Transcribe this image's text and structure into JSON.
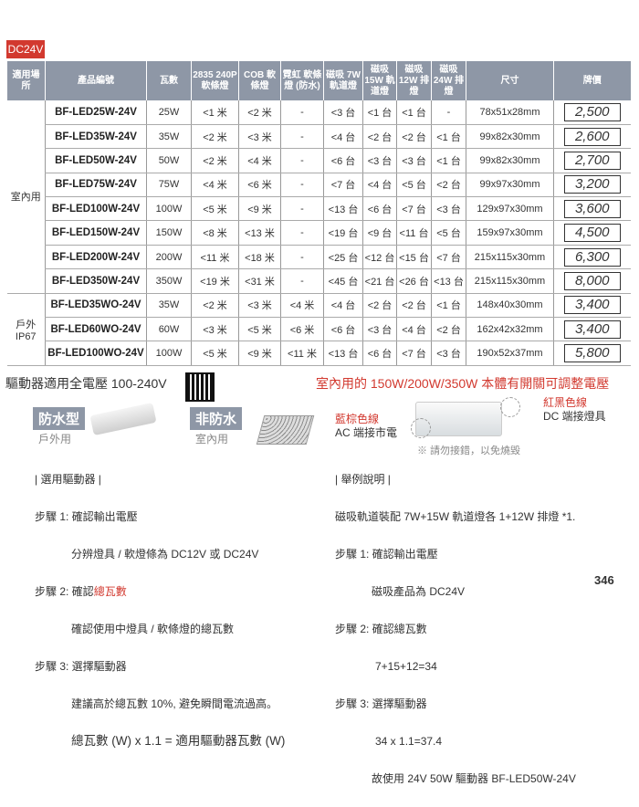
{
  "tag": "DC24V",
  "headers": [
    "適用場所",
    "產品編號",
    "瓦數",
    "2835 240P 軟條燈",
    "COB 軟條燈",
    "霓虹 軟條燈 (防水)",
    "磁吸 7W 軌道燈",
    "磁吸 15W 軌道燈",
    "磁吸 12W 排燈",
    "磁吸 24W 排燈",
    "尺寸",
    "牌價"
  ],
  "groups": [
    {
      "label": "室內用",
      "span": 8
    },
    {
      "label": "戶外 IP67",
      "span": 3
    }
  ],
  "rows": [
    [
      "BF-LED25W-24V",
      "25W",
      "<1 米",
      "<2 米",
      "-",
      "<3 台",
      "<1 台",
      "<1 台",
      "-",
      "78x51x28mm",
      "2,500"
    ],
    [
      "BF-LED35W-24V",
      "35W",
      "<2 米",
      "<3 米",
      "-",
      "<4 台",
      "<2 台",
      "<2 台",
      "<1 台",
      "99x82x30mm",
      "2,600"
    ],
    [
      "BF-LED50W-24V",
      "50W",
      "<2 米",
      "<4 米",
      "-",
      "<6 台",
      "<3 台",
      "<3 台",
      "<1 台",
      "99x82x30mm",
      "2,700"
    ],
    [
      "BF-LED75W-24V",
      "75W",
      "<4 米",
      "<6 米",
      "-",
      "<7 台",
      "<4 台",
      "<5 台",
      "<2 台",
      "99x97x30mm",
      "3,200"
    ],
    [
      "BF-LED100W-24V",
      "100W",
      "<5 米",
      "<9 米",
      "-",
      "<13 台",
      "<6 台",
      "<7 台",
      "<3 台",
      "129x97x30mm",
      "3,600"
    ],
    [
      "BF-LED150W-24V",
      "150W",
      "<8 米",
      "<13 米",
      "-",
      "<19 台",
      "<9 台",
      "<11 台",
      "<5 台",
      "159x97x30mm",
      "4,500"
    ],
    [
      "BF-LED200W-24V",
      "200W",
      "<11 米",
      "<18 米",
      "-",
      "<25 台",
      "<12 台",
      "<15 台",
      "<7 台",
      "215x115x30mm",
      "6,300"
    ],
    [
      "BF-LED350W-24V",
      "350W",
      "<19 米",
      "<31 米",
      "-",
      "<45 台",
      "<21 台",
      "<26 台",
      "<13 台",
      "215x115x30mm",
      "8,000"
    ],
    [
      "BF-LED35WO-24V",
      "35W",
      "<2 米",
      "<3 米",
      "<4 米",
      "<4 台",
      "<2 台",
      "<2 台",
      "<1 台",
      "148x40x30mm",
      "3,400"
    ],
    [
      "BF-LED60WO-24V",
      "60W",
      "<3 米",
      "<5 米",
      "<6 米",
      "<6 台",
      "<3 台",
      "<4 台",
      "<2 台",
      "162x42x32mm",
      "3,400"
    ],
    [
      "BF-LED100WO-24V",
      "100W",
      "<5 米",
      "<9 米",
      "<11 米",
      "<13 台",
      "<6 台",
      "<7 台",
      "<3 台",
      "190x52x37mm",
      "5,800"
    ]
  ],
  "drivers": {
    "voltage": "驅動器適用全電壓 100-240V",
    "notice": "室內用的 150W/200W/350W 本體有開關可調整電壓",
    "waterproof": "防水型",
    "waterproof_sub": "戶外用",
    "nonwaterproof": "非防水",
    "nonwaterproof_sub": "室內用",
    "blue_brown": "藍棕色線",
    "ac": "AC 端接市電",
    "red_black": "紅黑色線",
    "dc": "DC 端接燈具",
    "warn": "※ 請勿接錯，以免燒毀"
  },
  "select": {
    "title": "| 選用驅動器 |",
    "s1": "步驟 1: 確認輸出電壓",
    "s1d": "分辨燈具 / 軟燈條為 DC12V 或 DC24V",
    "s2": "步驟 2: 確認",
    "s2r": "總瓦數",
    "s2d": "確認使用中燈具 / 軟條燈的總瓦數",
    "s3": "步驟 3: 選擇驅動器",
    "s3d": "建議高於總瓦數 10%, 避免瞬間電流過高。",
    "formula": "總瓦數 (W) x 1.1 = 適用驅動器瓦數 (W)"
  },
  "example": {
    "title": "| 舉例說明 |",
    "intro": "磁吸軌道裝配 7W+15W 軌道燈各 1+12W 排燈 *1.",
    "s1": "步驟 1: 確認輸出電壓",
    "s1d": "磁吸產品為 DC24V",
    "s2": "步驟 2: 確認總瓦數",
    "s2d": "7+15+12=34",
    "s3": "步驟 3: 選擇驅動器",
    "s3d": "34 x 1.1=37.4",
    "result": "故使用 24V 50W 驅動器 BF-LED50W-24V"
  },
  "page_number": "346"
}
